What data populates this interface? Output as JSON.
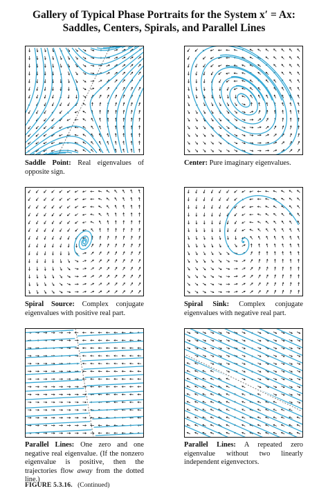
{
  "title": {
    "line1": "Gallery of Typical Phase Portraits for the System x′ = Ax:",
    "line2": "Saddles, Centers, Spirals, and Parallel Lines"
  },
  "colors": {
    "trajectory": "#35a9d6",
    "arrow": "#111111",
    "dashed": "#555555"
  },
  "panels": [
    {
      "name": "Saddle Point:",
      "text": "Real eigenvalues of opposite sign."
    },
    {
      "name": "Center:",
      "text": "Pure imaginary eigenvalues."
    },
    {
      "name": "Spiral Source:",
      "text": "Complex conjugate eigenvalues with positive real part."
    },
    {
      "name": "Spiral Sink:",
      "text": "Complex conjugate eigenvalues with negative real part."
    },
    {
      "name": "Parallel Lines:",
      "text_before": "One zero and one negative real eigenvalue. (If the nonzero eigenvalue is positive, then the trajectories flow ",
      "text_em": "away",
      "text_after": " from the dotted line.)"
    },
    {
      "name": "Parallel Lines:",
      "text": "A repeated zero eigenvalue without two linearly independent eigenvectors."
    }
  ],
  "figure": {
    "label": "FIGURE 5.3.16.",
    "note": "(Continued)"
  }
}
